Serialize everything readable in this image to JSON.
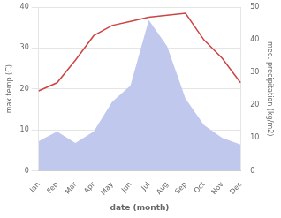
{
  "chart_data": {
    "type": "line",
    "categories": [
      "Jan",
      "Feb",
      "Mar",
      "Apr",
      "May",
      "Jun",
      "Jul",
      "Aug",
      "Sep",
      "Oct",
      "Nov",
      "Dec"
    ],
    "series": [
      {
        "type": "line",
        "color": "#cc4444",
        "values": [
          19.5,
          21.5,
          27.0,
          33.0,
          35.5,
          36.5,
          37.5,
          38.0,
          38.5,
          32.0,
          27.5,
          21.5
        ]
      },
      {
        "type": "area",
        "color": "#c0c8ee",
        "axis": "y2",
        "values": [
          9.0,
          12.0,
          8.5,
          12.0,
          21.0,
          26.0,
          46.0,
          38.0,
          22.0,
          14.0,
          10.0,
          8.0
        ]
      }
    ],
    "xlabel": "date (month)",
    "ylabel": "max temp (C)",
    "y2label": "med. precipitation (kg/m2)",
    "ylim": [
      0,
      40
    ],
    "yticks": [
      0,
      10,
      20,
      30,
      40
    ],
    "y2lim": [
      0,
      50
    ],
    "y2ticks": [
      0,
      10,
      20,
      30,
      40,
      50
    ],
    "grid": true
  }
}
